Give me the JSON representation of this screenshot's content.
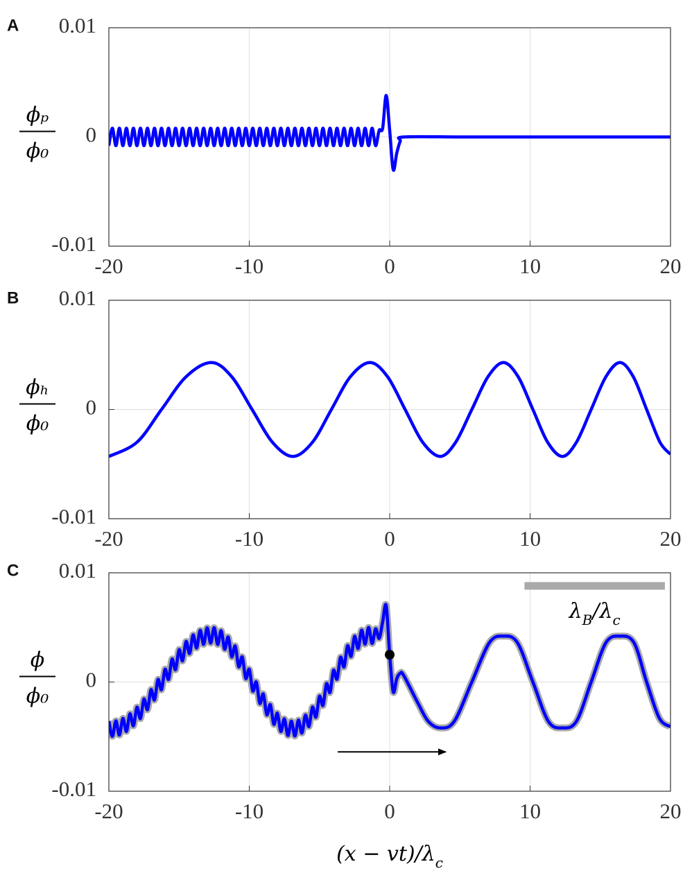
{
  "chart_data": [
    {
      "type": "line",
      "panel_label": "A",
      "ylabel": {
        "numerator": "ϕₚ",
        "denominator": "ϕ₀"
      },
      "xlim": [
        -20,
        20
      ],
      "ylim": [
        -0.01,
        0.01
      ],
      "xticks": [
        -20,
        -10,
        0,
        10,
        20
      ],
      "yticks": [
        -0.01,
        0,
        0.01
      ],
      "grid": true,
      "x": [
        -20,
        -19.75,
        -19.5,
        -19.25,
        -19,
        -18.75,
        -18.5,
        -18.25,
        -18,
        -17.75,
        -17.5,
        -17.25,
        -17,
        -16.75,
        -16.5,
        -16.25,
        -16,
        -15.75,
        -15.5,
        -15.25,
        -15,
        -14.75,
        -14.5,
        -14.25,
        -14,
        -13.75,
        -13.5,
        -13.25,
        -13,
        -12.75,
        -12.5,
        -12.25,
        -12,
        -11.75,
        -11.5,
        -11.25,
        -11,
        -10.75,
        -10.5,
        -10.25,
        -10,
        -9.75,
        -9.5,
        -9.25,
        -9,
        -8.75,
        -8.5,
        -8.25,
        -8,
        -7.75,
        -7.5,
        -7.25,
        -7,
        -6.75,
        -6.5,
        -6.25,
        -6,
        -5.75,
        -5.5,
        -5.25,
        -5,
        -4.75,
        -4.5,
        -4.25,
        -4,
        -3.75,
        -3.5,
        -3.25,
        -3,
        -2.75,
        -2.5,
        -2.25,
        -2,
        -1.75,
        -1.5,
        -1.25,
        -1,
        -0.75,
        -0.5,
        -0.25,
        0,
        0.25,
        0.5,
        0.75,
        1,
        5,
        10,
        15,
        20
      ],
      "series": [
        {
          "color": "#0000ff",
          "values": [
            -0.0008,
            0.0008,
            -0.0008,
            0.0008,
            -0.0008,
            0.0008,
            -0.0008,
            0.0008,
            -0.0008,
            0.0008,
            -0.0008,
            0.0008,
            -0.0008,
            0.0008,
            -0.0008,
            0.0008,
            -0.0008,
            0.0008,
            -0.0008,
            0.0008,
            -0.0008,
            0.0008,
            -0.0008,
            0.0008,
            -0.0008,
            0.0008,
            -0.0008,
            0.0008,
            -0.0008,
            0.0008,
            -0.0008,
            0.0008,
            -0.0008,
            0.0008,
            -0.0008,
            0.0008,
            -0.0008,
            0.0008,
            -0.0008,
            0.0008,
            -0.0008,
            0.0008,
            -0.0008,
            0.0008,
            -0.0008,
            0.0008,
            -0.0008,
            0.0008,
            -0.0008,
            0.0008,
            -0.0008,
            0.0008,
            -0.0008,
            0.0008,
            -0.0008,
            0.0008,
            -0.0008,
            0.0008,
            -0.0008,
            0.0008,
            -0.0008,
            0.0008,
            -0.0008,
            0.0008,
            -0.0008,
            0.0008,
            -0.0008,
            0.0008,
            -0.0008,
            0.0008,
            -0.0008,
            0.0008,
            -0.0008,
            0.0008,
            -0.0008,
            0.0008,
            -0.0008,
            0.0006,
            0.0008,
            0.0038,
            0.0006,
            -0.003,
            -0.0015,
            -0.0004,
            0,
            0,
            0,
            0,
            0
          ]
        }
      ]
    },
    {
      "type": "line",
      "panel_label": "B",
      "ylabel": {
        "numerator": "ϕₕ",
        "denominator": "ϕ₀"
      },
      "xlim": [
        -20,
        20
      ],
      "ylim": [
        -0.01,
        0.01
      ],
      "xticks": [
        -20,
        -10,
        0,
        10,
        20
      ],
      "yticks": [
        -0.01,
        0,
        0.01
      ],
      "grid": true,
      "x": [
        -20,
        -18,
        -16.25,
        -14.5,
        -12.7,
        -11.25,
        -9.8,
        -8.35,
        -6.9,
        -5.5,
        -4.15,
        -2.8,
        -1.4,
        -0.15,
        1.1,
        2.35,
        3.6,
        4.7,
        5.85,
        7,
        8.1,
        9.15,
        10.2,
        11.25,
        12.3,
        13.3,
        14.35,
        15.4,
        16.4,
        17.35,
        18.3,
        19.25,
        20
      ],
      "series": [
        {
          "color": "#0000ff",
          "values": [
            -0.0043,
            -0.003,
            0,
            0.003,
            0.0043,
            0.003,
            0,
            -0.003,
            -0.0043,
            -0.003,
            0,
            0.003,
            0.0043,
            0.003,
            0,
            -0.003,
            -0.0043,
            -0.003,
            0,
            0.003,
            0.0043,
            0.003,
            0,
            -0.003,
            -0.0043,
            -0.003,
            0,
            0.003,
            0.0043,
            0.003,
            0,
            -0.003,
            -0.0041
          ]
        }
      ]
    },
    {
      "type": "line",
      "panel_label": "C",
      "ylabel": {
        "numerator": "ϕ",
        "denominator": "ϕ₀"
      },
      "xlabel_parts": [
        {
          "text": "(x − vt)/λ"
        },
        {
          "text": "c",
          "sub": true
        }
      ],
      "xlim": [
        -20,
        20
      ],
      "ylim": [
        -0.01,
        0.01
      ],
      "xticks": [
        -20,
        -10,
        0,
        10,
        20
      ],
      "yticks": [
        -0.01,
        0,
        0.01
      ],
      "grid": true,
      "x": [
        -20,
        -19.75,
        -19.5,
        -19.25,
        -19,
        -18.75,
        -18.5,
        -18.25,
        -18,
        -17.75,
        -17.5,
        -17.25,
        -17,
        -16.75,
        -16.5,
        -16.25,
        -16,
        -15.75,
        -15.5,
        -15.25,
        -15,
        -14.75,
        -14.5,
        -14.25,
        -14,
        -13.75,
        -13.5,
        -13.25,
        -13,
        -12.75,
        -12.5,
        -12.25,
        -12,
        -11.75,
        -11.5,
        -11.25,
        -11,
        -10.75,
        -10.5,
        -10.25,
        -10,
        -9.75,
        -9.5,
        -9.25,
        -9,
        -8.75,
        -8.5,
        -8.25,
        -8,
        -7.75,
        -7.5,
        -7.25,
        -7,
        -6.75,
        -6.5,
        -6.25,
        -6,
        -5.75,
        -5.5,
        -5.25,
        -5,
        -4.75,
        -4.5,
        -4.25,
        -4,
        -3.75,
        -3.5,
        -3.25,
        -3,
        -2.75,
        -2.5,
        -2.25,
        -2,
        -1.75,
        -1.5,
        -1.25,
        -1,
        -0.75,
        -0.5,
        -0.25,
        0,
        0.25,
        0.5,
        0.75,
        1,
        2,
        2.75,
        3.6,
        4.6,
        5.85,
        7.1,
        8.1,
        9.1,
        10.2,
        11.3,
        12.3,
        13.3,
        14.35,
        15.4,
        16.4,
        17.4,
        18.3,
        19.2,
        20
      ],
      "series": [
        {
          "color": "#0000ff",
          "outline_color": "#aaaaaa",
          "values": [
            -0.00358,
            -0.00497,
            -0.00356,
            -0.00485,
            -0.00333,
            -0.00452,
            -0.00291,
            -0.00401,
            -0.00231,
            -0.00334,
            -0.00156,
            -0.00253,
            -0.0007,
            -0.00164,
            0.00023,
            -0.0007,
            0.00117,
            0.00024,
            0.0021,
            0.00113,
            0.00296,
            0.00194,
            0.00371,
            0.00261,
            0.00431,
            0.00312,
            0.00473,
            0.00345,
            0.00496,
            0.00357,
            0.00497,
            0.00344,
            0.0047,
            0.00301,
            0.00412,
            0.00231,
            0.0033,
            0.0014,
            0.00229,
            0.00033,
            0.00116,
            -0.00082,
            0,
            -0.00195,
            -0.0011,
            -0.00299,
            -0.00208,
            -0.00387,
            -0.00286,
            -0.00452,
            -0.00338,
            -0.00489,
            -0.00359,
            -0.00494,
            -0.00349,
            -0.00467,
            -0.00304,
            -0.00407,
            -0.0023,
            -0.00321,
            -0.00131,
            -0.00214,
            -0.00016,
            -0.00095,
            0.00107,
            0.00027,
            0.00226,
            0.00139,
            0.00332,
            0.00235,
            0.00418,
            0.00307,
            0.00475,
            0.00347,
            0.00499,
            0.00353,
            0.00487,
            0.004,
            0.0055,
            0.007,
            0.0025,
            -0.0009,
            0.0003,
            0.0008,
            0.0006,
            -0.0019,
            -0.0036,
            -0.0042,
            -0.0036,
            0,
            0.0036,
            0.0042,
            0.0036,
            0,
            -0.0036,
            -0.0042,
            -0.0036,
            0,
            0.0036,
            0.0042,
            0.0036,
            0,
            -0.0033,
            -0.0041
          ]
        }
      ],
      "scale_bar": {
        "x": [
          9.6,
          19.6
        ],
        "y": 0.0088,
        "color": "#aaaaaa",
        "label_parts": [
          {
            "text": "λ"
          },
          {
            "text": "B",
            "sub": true
          },
          {
            "text": "/λ"
          },
          {
            "text": "c",
            "sub": true
          }
        ]
      },
      "marker": {
        "x": 0,
        "y": 0.0025,
        "color": "#000000"
      },
      "arrow": {
        "x": [
          -3.7,
          4
        ],
        "y": -0.0064,
        "color": "#000000"
      }
    }
  ]
}
